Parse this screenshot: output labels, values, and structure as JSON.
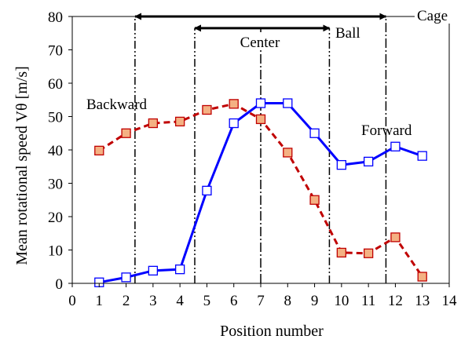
{
  "chart_data": {
    "type": "line",
    "xlabel": "Position number",
    "ylabel": "Mean rotational speed  Vθ [m/s]",
    "xlim": [
      0,
      14
    ],
    "ylim": [
      0,
      80
    ],
    "x_ticks": [
      "0",
      "1",
      "2",
      "3",
      "4",
      "5",
      "6",
      "7",
      "8",
      "9",
      "10",
      "11",
      "12",
      "13",
      "14"
    ],
    "y_ticks": [
      "0",
      "10",
      "20",
      "30",
      "40",
      "50",
      "60",
      "70",
      "80"
    ],
    "grid": false,
    "series": [
      {
        "x": [
          1,
          2,
          3,
          4,
          5,
          6,
          7,
          8,
          9,
          10,
          11,
          12,
          13
        ],
        "values": [
          0.3,
          1.8,
          3.8,
          4.2,
          27.8,
          48,
          54,
          54,
          45,
          35.5,
          36.5,
          41,
          38.2
        ],
        "color": "#0000ff",
        "line_style": "solid",
        "marker": "open-square",
        "marker_fill": "#ffffff"
      },
      {
        "x": [
          1,
          2,
          3,
          4,
          5,
          6,
          7,
          8,
          9,
          10,
          11,
          12,
          13
        ],
        "values": [
          39.8,
          45,
          48,
          48.5,
          52,
          53.8,
          49.2,
          39.2,
          25,
          9.2,
          9,
          13.8,
          2
        ],
        "color": "#c00000",
        "line_style": "dashed",
        "marker": "filled-square",
        "marker_fill": "#f4b183"
      }
    ],
    "vertical_lines": [
      {
        "x": 2.33,
        "style": "dash-dot-dot"
      },
      {
        "x": 4.55,
        "style": "dash-dot-dot"
      },
      {
        "x": 7.0,
        "style": "dash-dot"
      },
      {
        "x": 9.55,
        "style": "dash-dot-dot"
      },
      {
        "x": 11.65,
        "style": "dash-dot"
      }
    ],
    "range_arrows": [
      {
        "from": 2.33,
        "to": 11.65,
        "y": 80
      },
      {
        "from": 4.55,
        "to": 9.55,
        "y": 76.5
      }
    ],
    "annotations": {
      "backward": "Backward",
      "forward": "Forward",
      "center": "Center",
      "ball": "Ball",
      "cage": "Cage"
    }
  }
}
